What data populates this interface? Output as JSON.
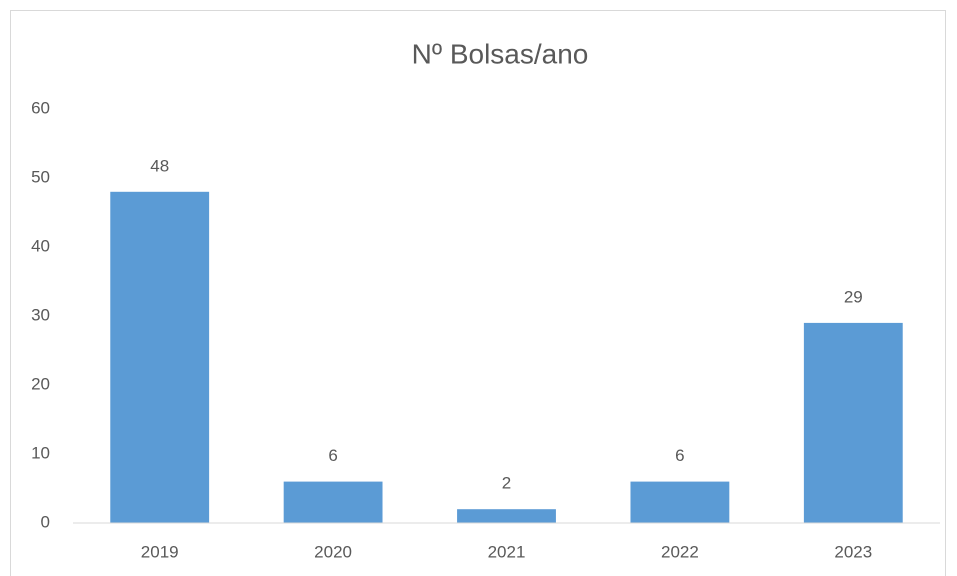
{
  "chart_data": {
    "type": "bar",
    "title": "Nº Bolsas/ano",
    "categories": [
      "2019",
      "2020",
      "2021",
      "2022",
      "2023"
    ],
    "values": [
      48,
      6,
      2,
      6,
      29
    ],
    "color": "#5b9bd5",
    "ylim": [
      0,
      60
    ],
    "yticks": [
      0,
      10,
      20,
      30,
      40,
      50,
      60
    ],
    "grid": false
  }
}
